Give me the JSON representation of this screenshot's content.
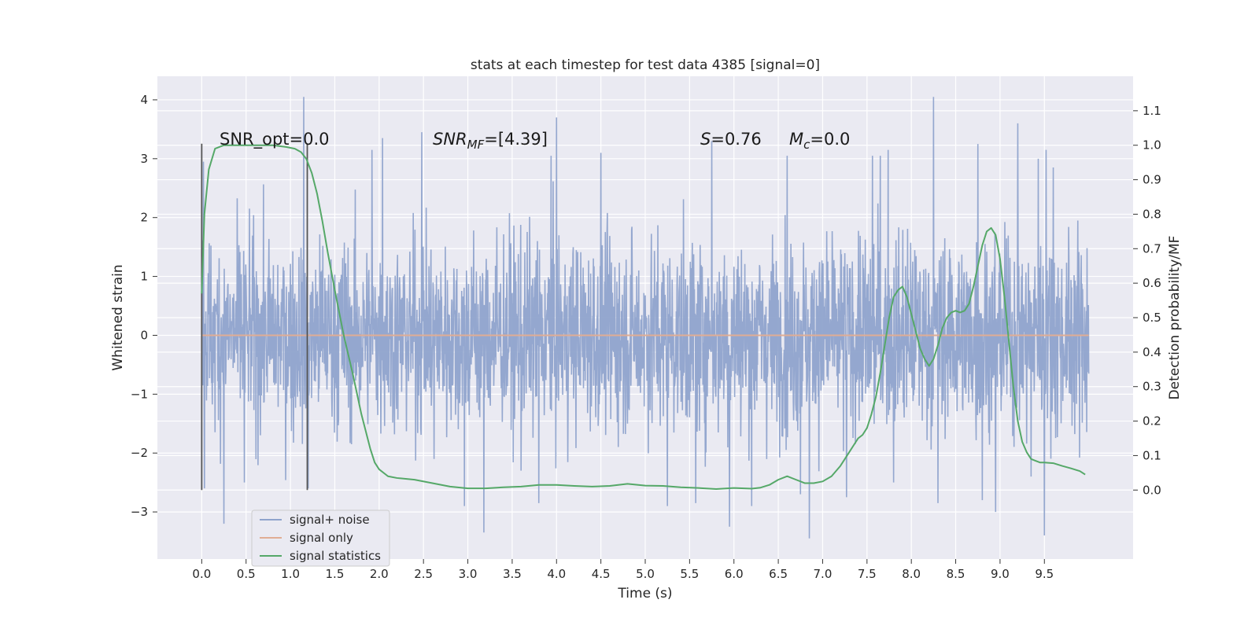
{
  "chart_data": {
    "type": "line",
    "title": "stats at each timestep for test data 4385 [signal=0]",
    "xlabel": "Time (s)",
    "ylabel": "Whitened strain",
    "y2label": "Detection probability/MF",
    "xlim": [
      -0.5,
      10.5
    ],
    "ylim": [
      -3.8,
      4.4
    ],
    "y2lim": [
      -0.2,
      1.2
    ],
    "x_ticks": [
      "0.0",
      "0.5",
      "1.0",
      "1.5",
      "2.0",
      "2.5",
      "3.0",
      "3.5",
      "4.0",
      "4.5",
      "5.0",
      "5.5",
      "6.0",
      "6.5",
      "7.0",
      "7.5",
      "8.0",
      "8.5",
      "9.0",
      "9.5"
    ],
    "y_ticks": [
      "−3",
      "−2",
      "−1",
      "0",
      "1",
      "2",
      "3",
      "4"
    ],
    "y2_ticks": [
      "0.0",
      "0.1",
      "0.2",
      "0.3",
      "0.4",
      "0.5",
      "0.6",
      "0.7",
      "0.8",
      "0.9",
      "1.0",
      "1.1"
    ],
    "grid": true,
    "legend_position": "lower-left",
    "annotations": {
      "snr_opt": "SNR_opt=0.0",
      "snr_mf_main": "SNR",
      "snr_mf_sub": "MF",
      "snr_mf_value": "=[4.39]",
      "s_main": "S",
      "s_value": "=0.76",
      "mc_main": "M",
      "mc_sub": "c",
      "mc_value": "=0.0"
    },
    "markers": [
      0.0,
      1.19
    ],
    "series": [
      {
        "name": "signal+ noise",
        "color": "#8fa3cc",
        "x_range": [
          0.0,
          10.0
        ],
        "core_band": [
          -0.9,
          0.9
        ],
        "envelope": [
          -2.7,
          3.0
        ],
        "peak_points": [
          [
            0.02,
            2.95
          ],
          [
            0.03,
            -2.6
          ],
          [
            0.25,
            -3.2
          ],
          [
            0.48,
            -2.5
          ],
          [
            1.15,
            4.05
          ],
          [
            1.2,
            -2.6
          ],
          [
            1.92,
            3.15
          ],
          [
            2.04,
            3.35
          ],
          [
            2.48,
            3.45
          ],
          [
            2.62,
            -2.1
          ],
          [
            2.96,
            -2.9
          ],
          [
            3.18,
            -3.35
          ],
          [
            3.6,
            -2.3
          ],
          [
            3.8,
            -2.85
          ],
          [
            3.94,
            3.05
          ],
          [
            4.0,
            3.7
          ],
          [
            4.5,
            3.1
          ],
          [
            5.25,
            -2.9
          ],
          [
            5.57,
            -2.85
          ],
          [
            5.75,
            3.3
          ],
          [
            5.95,
            -3.25
          ],
          [
            6.2,
            -2.9
          ],
          [
            6.6,
            3.05
          ],
          [
            6.75,
            -2.7
          ],
          [
            6.85,
            -3.45
          ],
          [
            7.27,
            -2.75
          ],
          [
            7.56,
            3.05
          ],
          [
            7.65,
            3.05
          ],
          [
            7.74,
            3.15
          ],
          [
            7.8,
            -2.5
          ],
          [
            8.25,
            4.05
          ],
          [
            8.3,
            -2.85
          ],
          [
            8.75,
            3.25
          ],
          [
            8.8,
            -2.8
          ],
          [
            8.95,
            -3.0
          ],
          [
            9.2,
            3.6
          ],
          [
            9.35,
            -2.4
          ],
          [
            9.43,
            3.0
          ],
          [
            9.5,
            -3.4
          ],
          [
            9.52,
            3.15
          ],
          [
            9.6,
            2.85
          ]
        ]
      },
      {
        "name": "signal only",
        "color": "#e0ad94",
        "x": [
          0.0,
          10.0
        ],
        "y": [
          0.0,
          0.0
        ]
      },
      {
        "name": "signal statistics",
        "color": "#55a868",
        "axis": "right",
        "x": [
          0.0,
          0.03,
          0.08,
          0.15,
          0.25,
          0.4,
          0.6,
          0.8,
          0.95,
          1.05,
          1.12,
          1.18,
          1.24,
          1.3,
          1.36,
          1.42,
          1.5,
          1.6,
          1.7,
          1.8,
          1.9,
          1.95,
          2.0,
          2.1,
          2.2,
          2.4,
          2.6,
          2.8,
          3.0,
          3.2,
          3.4,
          3.6,
          3.8,
          4.0,
          4.2,
          4.4,
          4.6,
          4.8,
          5.0,
          5.2,
          5.4,
          5.6,
          5.8,
          6.0,
          6.2,
          6.3,
          6.4,
          6.5,
          6.6,
          6.7,
          6.8,
          6.9,
          7.0,
          7.1,
          7.2,
          7.3,
          7.35,
          7.4,
          7.45,
          7.5,
          7.55,
          7.6,
          7.65,
          7.7,
          7.75,
          7.8,
          7.85,
          7.9,
          7.95,
          8.0,
          8.05,
          8.1,
          8.15,
          8.2,
          8.25,
          8.3,
          8.35,
          8.4,
          8.45,
          8.5,
          8.55,
          8.6,
          8.65,
          8.7,
          8.75,
          8.8,
          8.85,
          8.9,
          8.95,
          9.0,
          9.05,
          9.1,
          9.15,
          9.2,
          9.25,
          9.3,
          9.35,
          9.4,
          9.45,
          9.5,
          9.6,
          9.7,
          9.8,
          9.9,
          9.96
        ],
        "y": [
          0.57,
          0.8,
          0.93,
          0.99,
          1.0,
          1.0,
          1.0,
          1.0,
          0.995,
          0.99,
          0.98,
          0.96,
          0.92,
          0.86,
          0.78,
          0.69,
          0.58,
          0.45,
          0.34,
          0.22,
          0.12,
          0.08,
          0.06,
          0.04,
          0.035,
          0.03,
          0.02,
          0.01,
          0.005,
          0.005,
          0.008,
          0.01,
          0.015,
          0.015,
          0.012,
          0.01,
          0.012,
          0.018,
          0.013,
          0.012,
          0.008,
          0.006,
          0.003,
          0.006,
          0.004,
          0.007,
          0.015,
          0.03,
          0.04,
          0.03,
          0.02,
          0.02,
          0.025,
          0.04,
          0.07,
          0.11,
          0.13,
          0.15,
          0.16,
          0.18,
          0.22,
          0.27,
          0.34,
          0.42,
          0.5,
          0.56,
          0.58,
          0.59,
          0.56,
          0.51,
          0.46,
          0.41,
          0.38,
          0.36,
          0.38,
          0.42,
          0.47,
          0.5,
          0.515,
          0.52,
          0.515,
          0.52,
          0.54,
          0.59,
          0.65,
          0.71,
          0.75,
          0.76,
          0.74,
          0.67,
          0.56,
          0.43,
          0.3,
          0.2,
          0.14,
          0.11,
          0.09,
          0.085,
          0.08,
          0.08,
          0.078,
          0.07,
          0.063,
          0.055,
          0.045
        ]
      }
    ]
  }
}
